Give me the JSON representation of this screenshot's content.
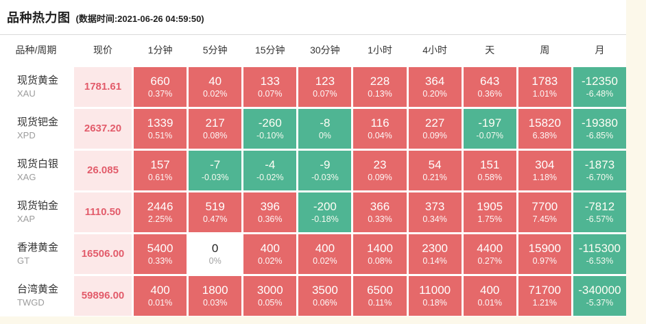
{
  "header": {
    "title": "品种热力图",
    "data_time": "(数据时间:2021-06-26 04:59:50)"
  },
  "colors": {
    "up_cell": "#e5696a",
    "down_cell": "#4fb593",
    "zero_cell": "#ffffff",
    "price_bg": "#fce8e8",
    "price_text": "#e25b6a",
    "page_bg": "#fcf8ea"
  },
  "table": {
    "columns": [
      "品种/周期",
      "现价",
      "1分钟",
      "5分钟",
      "15分钟",
      "30分钟",
      "1小时",
      "4小时",
      "天",
      "周",
      "月"
    ],
    "rows": [
      {
        "name": "现货黄金",
        "code": "XAU",
        "price": "1781.61",
        "cells": [
          {
            "value": "660",
            "pct": "0.37%",
            "dir": "up"
          },
          {
            "value": "40",
            "pct": "0.02%",
            "dir": "up"
          },
          {
            "value": "133",
            "pct": "0.07%",
            "dir": "up"
          },
          {
            "value": "123",
            "pct": "0.07%",
            "dir": "up"
          },
          {
            "value": "228",
            "pct": "0.13%",
            "dir": "up"
          },
          {
            "value": "364",
            "pct": "0.20%",
            "dir": "up"
          },
          {
            "value": "643",
            "pct": "0.36%",
            "dir": "up"
          },
          {
            "value": "1783",
            "pct": "1.01%",
            "dir": "up"
          },
          {
            "value": "-12350",
            "pct": "-6.48%",
            "dir": "down"
          }
        ]
      },
      {
        "name": "现货钯金",
        "code": "XPD",
        "price": "2637.20",
        "cells": [
          {
            "value": "1339",
            "pct": "0.51%",
            "dir": "up"
          },
          {
            "value": "217",
            "pct": "0.08%",
            "dir": "up"
          },
          {
            "value": "-260",
            "pct": "-0.10%",
            "dir": "down"
          },
          {
            "value": "-8",
            "pct": "0%",
            "dir": "down"
          },
          {
            "value": "116",
            "pct": "0.04%",
            "dir": "up"
          },
          {
            "value": "227",
            "pct": "0.09%",
            "dir": "up"
          },
          {
            "value": "-197",
            "pct": "-0.07%",
            "dir": "down"
          },
          {
            "value": "15820",
            "pct": "6.38%",
            "dir": "up"
          },
          {
            "value": "-19380",
            "pct": "-6.85%",
            "dir": "down"
          }
        ]
      },
      {
        "name": "现货白银",
        "code": "XAG",
        "price": "26.085",
        "cells": [
          {
            "value": "157",
            "pct": "0.61%",
            "dir": "up"
          },
          {
            "value": "-7",
            "pct": "-0.03%",
            "dir": "down"
          },
          {
            "value": "-4",
            "pct": "-0.02%",
            "dir": "down"
          },
          {
            "value": "-9",
            "pct": "-0.03%",
            "dir": "down"
          },
          {
            "value": "23",
            "pct": "0.09%",
            "dir": "up"
          },
          {
            "value": "54",
            "pct": "0.21%",
            "dir": "up"
          },
          {
            "value": "151",
            "pct": "0.58%",
            "dir": "up"
          },
          {
            "value": "304",
            "pct": "1.18%",
            "dir": "up"
          },
          {
            "value": "-1873",
            "pct": "-6.70%",
            "dir": "down"
          }
        ]
      },
      {
        "name": "现货铂金",
        "code": "XAP",
        "price": "1110.50",
        "cells": [
          {
            "value": "2446",
            "pct": "2.25%",
            "dir": "up"
          },
          {
            "value": "519",
            "pct": "0.47%",
            "dir": "up"
          },
          {
            "value": "396",
            "pct": "0.36%",
            "dir": "up"
          },
          {
            "value": "-200",
            "pct": "-0.18%",
            "dir": "down"
          },
          {
            "value": "366",
            "pct": "0.33%",
            "dir": "up"
          },
          {
            "value": "373",
            "pct": "0.34%",
            "dir": "up"
          },
          {
            "value": "1905",
            "pct": "1.75%",
            "dir": "up"
          },
          {
            "value": "7700",
            "pct": "7.45%",
            "dir": "up"
          },
          {
            "value": "-7812",
            "pct": "-6.57%",
            "dir": "down"
          }
        ]
      },
      {
        "name": "香港黄金",
        "code": "GT",
        "price": "16506.00",
        "cells": [
          {
            "value": "5400",
            "pct": "0.33%",
            "dir": "up"
          },
          {
            "value": "0",
            "pct": "0%",
            "dir": "zero"
          },
          {
            "value": "400",
            "pct": "0.02%",
            "dir": "up"
          },
          {
            "value": "400",
            "pct": "0.02%",
            "dir": "up"
          },
          {
            "value": "1400",
            "pct": "0.08%",
            "dir": "up"
          },
          {
            "value": "2300",
            "pct": "0.14%",
            "dir": "up"
          },
          {
            "value": "4400",
            "pct": "0.27%",
            "dir": "up"
          },
          {
            "value": "15900",
            "pct": "0.97%",
            "dir": "up"
          },
          {
            "value": "-115300",
            "pct": "-6.53%",
            "dir": "down"
          }
        ]
      },
      {
        "name": "台湾黄金",
        "code": "TWGD",
        "price": "59896.00",
        "cells": [
          {
            "value": "400",
            "pct": "0.01%",
            "dir": "up"
          },
          {
            "value": "1800",
            "pct": "0.03%",
            "dir": "up"
          },
          {
            "value": "3000",
            "pct": "0.05%",
            "dir": "up"
          },
          {
            "value": "3500",
            "pct": "0.06%",
            "dir": "up"
          },
          {
            "value": "6500",
            "pct": "0.11%",
            "dir": "up"
          },
          {
            "value": "11000",
            "pct": "0.18%",
            "dir": "up"
          },
          {
            "value": "400",
            "pct": "0.01%",
            "dir": "up"
          },
          {
            "value": "71700",
            "pct": "1.21%",
            "dir": "up"
          },
          {
            "value": "-340000",
            "pct": "-5.37%",
            "dir": "down"
          }
        ]
      }
    ]
  }
}
